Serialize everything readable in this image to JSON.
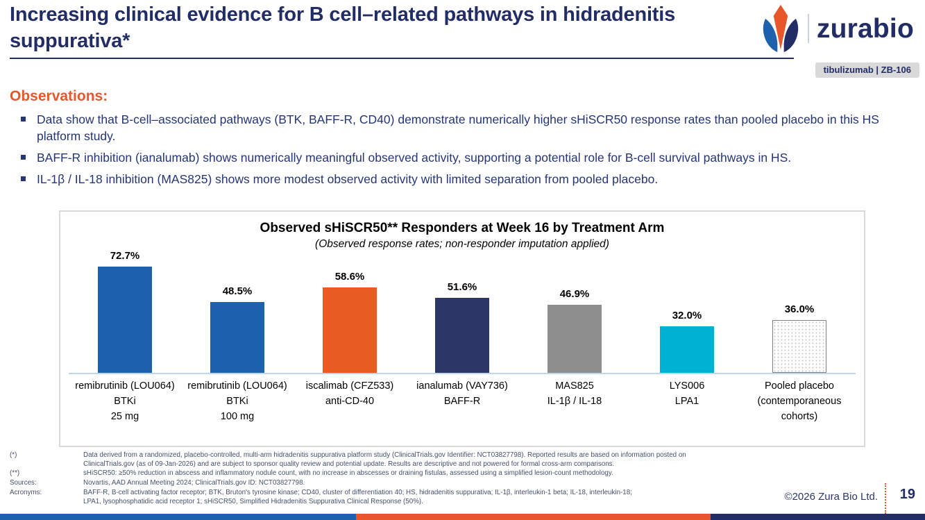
{
  "slide": {
    "title": "Increasing clinical evidence for B cell–related pathways in hidradenitis suppurativa*",
    "logo": {
      "icon": "zurabio-tulip-icon",
      "wordmark": "zurabio",
      "badge": "tibulizumab  |  ZB-106"
    }
  },
  "brand_colors": {
    "navy": "#232D65",
    "blue": "#1E62AE",
    "orange": "#E8562B",
    "light_gray": "#D9D9D9"
  },
  "observations": {
    "heading": "Observations:",
    "bullets": [
      "Data show that B-cell–associated pathways (BTK, BAFF-R, CD40) demonstrate numerically higher sHiSCR50 response rates than pooled placebo in this HS platform study.",
      "BAFF-R inhibition (ianalumab) shows numerically meaningful observed activity, supporting a potential role for B-cell survival pathways in HS.",
      "IL-1β / IL-18 inhibition (MAS825) shows more modest observed activity with limited separation from pooled placebo."
    ]
  },
  "chart_data": {
    "type": "bar",
    "title": "Observed sHiSCR50** Responders at Week 16 by Treatment Arm",
    "subtitle": "(Observed response rates; non-responder imputation applied)",
    "categories": [
      [
        "remibrutinib (LOU064)",
        "BTKi",
        "25 mg"
      ],
      [
        "remibrutinib (LOU064)",
        "BTKi",
        "100 mg"
      ],
      [
        "iscalimab (CFZ533)",
        "anti-CD-40"
      ],
      [
        "ianalumab (VAY736)",
        "BAFF-R"
      ],
      [
        "MAS825",
        "IL-1β / IL-18"
      ],
      [
        "LYS006",
        "LPA1"
      ],
      [
        "Pooled placebo",
        "(contemporaneous",
        "cohorts)"
      ]
    ],
    "values": [
      72.7,
      48.5,
      58.6,
      51.6,
      46.9,
      32.0,
      36.0
    ],
    "value_labels": [
      "72.7%",
      "48.5%",
      "58.6%",
      "51.6%",
      "46.9%",
      "32.0%",
      "36.0%"
    ],
    "colors": [
      "#1E62AE",
      "#1E62AE",
      "#E85C22",
      "#2C3768",
      "#8E8E8E",
      "#00B1D2",
      "pattern-dots"
    ],
    "ylim": [
      0,
      80
    ],
    "grid": false,
    "legend": "none",
    "baseline_color": "#BDD7EE",
    "xlabel": "",
    "ylabel": ""
  },
  "footnotes": [
    {
      "label": "(*)",
      "lines": [
        "Data derived from a randomized, placebo-controlled, multi-arm hidradenitis suppurativa platform study (ClinicalTrials.gov Identifier: NCT03827798). Reported results are based on information posted on",
        "ClinicalTrials.gov (as of 09-Jan-2026) and are subject to sponsor quality review and potential update. Results are descriptive and not powered for formal cross-arm comparisons."
      ]
    },
    {
      "label": "(**)",
      "lines": [
        "sHiSCR50: ≥50% reduction in abscess and inflammatory nodule count, with no increase in abscesses or draining fistulas, assessed using a simplified lesion-count methodology."
      ]
    },
    {
      "label": "Sources:",
      "lines": [
        "Novartis, AAD Annual Meeting 2024; ClinicalTrials.gov ID: NCT03827798."
      ]
    },
    {
      "label": "Acronyms:",
      "lines": [
        "BAFF-R, B-cell activating factor receptor; BTK, Bruton's tyrosine kinase; CD40, cluster of differentiation 40; HS, hidradenitis suppurativa; IL-1β, interleukin-1 beta; IL-18, interleukin-18;",
        "LPA1, lysophosphatidic acid receptor 1; sHiSCR50, Simplified Hidradenitis Suppurativa Clinical Response (50%)."
      ]
    }
  ],
  "footer": {
    "copyright": "©2026 Zura Bio Ltd.",
    "page": "19",
    "stripe": [
      {
        "color": "#1E62AE",
        "width_pct": 38.5
      },
      {
        "color": "#E8562B",
        "width_pct": 38.3
      },
      {
        "color": "#232D65",
        "width_pct": 23.2
      }
    ]
  }
}
